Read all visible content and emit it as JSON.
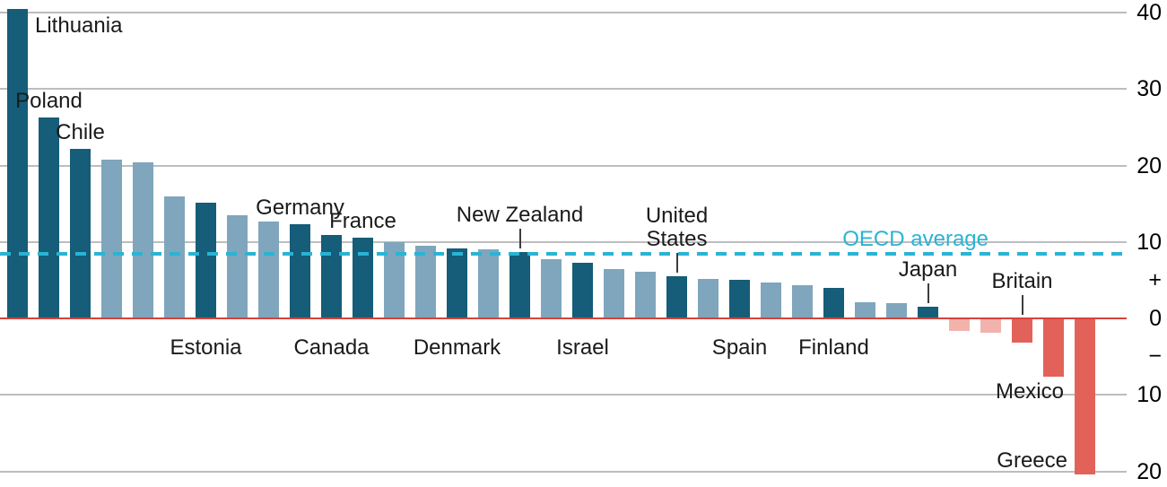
{
  "chart_data": {
    "type": "bar",
    "bars": [
      {
        "country": "Lithuania",
        "value": 40.5,
        "shade": "dark",
        "label_position": "top-right"
      },
      {
        "country": "Poland",
        "value": 26.3,
        "shade": "dark",
        "label_position": "above"
      },
      {
        "country": "Chile",
        "value": 22.2,
        "shade": "dark",
        "label_position": "above"
      },
      {
        "country": "",
        "value": 20.8,
        "shade": "light"
      },
      {
        "country": "",
        "value": 20.4,
        "shade": "light"
      },
      {
        "country": "",
        "value": 16.0,
        "shade": "light"
      },
      {
        "country": "Estonia",
        "value": 15.1,
        "shade": "dark",
        "label_position": "below"
      },
      {
        "country": "",
        "value": 13.5,
        "shade": "light"
      },
      {
        "country": "",
        "value": 12.7,
        "shade": "light"
      },
      {
        "country": "Germany",
        "value": 12.3,
        "shade": "dark",
        "label_position": "above"
      },
      {
        "country": "Canada",
        "value": 10.9,
        "shade": "dark",
        "label_position": "below"
      },
      {
        "country": "France",
        "value": 10.6,
        "shade": "dark",
        "label_position": "above"
      },
      {
        "country": "",
        "value": 10.0,
        "shade": "light"
      },
      {
        "country": "",
        "value": 9.5,
        "shade": "light"
      },
      {
        "country": "Denmark",
        "value": 9.1,
        "shade": "dark",
        "label_position": "below"
      },
      {
        "country": "",
        "value": 9.0,
        "shade": "light"
      },
      {
        "country": "New Zealand",
        "value": 8.7,
        "shade": "dark",
        "label_position": "above",
        "leader": true
      },
      {
        "country": "",
        "value": 7.7,
        "shade": "light"
      },
      {
        "country": "Israel",
        "value": 7.3,
        "shade": "dark",
        "label_position": "below"
      },
      {
        "country": "",
        "value": 6.5,
        "shade": "light"
      },
      {
        "country": "",
        "value": 6.1,
        "shade": "light"
      },
      {
        "country": "United\nStates",
        "value": 5.5,
        "shade": "dark",
        "label_position": "above",
        "leader": true
      },
      {
        "country": "",
        "value": 5.2,
        "shade": "light"
      },
      {
        "country": "Spain",
        "value": 5.0,
        "shade": "dark",
        "label_position": "below"
      },
      {
        "country": "",
        "value": 4.7,
        "shade": "light"
      },
      {
        "country": "",
        "value": 4.3,
        "shade": "light"
      },
      {
        "country": "Finland",
        "value": 4.0,
        "shade": "dark",
        "label_position": "below"
      },
      {
        "country": "",
        "value": 2.1,
        "shade": "light"
      },
      {
        "country": "",
        "value": 2.0,
        "shade": "light"
      },
      {
        "country": "Japan",
        "value": 1.5,
        "shade": "dark",
        "label_position": "above",
        "leader": true
      },
      {
        "country": "",
        "value": -1.5,
        "shade": "pink"
      },
      {
        "country": "",
        "value": -1.8,
        "shade": "pink"
      },
      {
        "country": "Britain",
        "value": -3.0,
        "shade": "red",
        "label_position": "above",
        "leader": true
      },
      {
        "country": "Mexico",
        "value": -7.5,
        "shade": "red",
        "label_position": "below-end"
      },
      {
        "country": "Greece",
        "value": -20.3,
        "shade": "red",
        "label_position": "left-of-end"
      }
    ],
    "reference_line": {
      "label": "OECD average",
      "value": 8.5,
      "style": "dashed"
    },
    "axis": {
      "side": "right",
      "ylim": [
        -20.5,
        40.5
      ],
      "gridlines": [
        40,
        30,
        20,
        10,
        -10,
        -20
      ],
      "zero_value": 0,
      "ticks": [
        {
          "text": "40",
          "value": 40
        },
        {
          "text": "30",
          "value": 30
        },
        {
          "text": "20",
          "value": 20
        },
        {
          "text": "10",
          "value": 10
        },
        {
          "text": "+",
          "value": 5.1
        },
        {
          "text": "0",
          "value": 0
        },
        {
          "text": "−",
          "value": -4.9
        },
        {
          "text": "10",
          "value": -10
        },
        {
          "text": "20",
          "value": -20
        }
      ]
    }
  },
  "colors": {
    "dark": "#155d78",
    "light": "#7fa6bc",
    "pink": "#f2b3ac",
    "red": "#e2625a",
    "zero_line": "#d6433c",
    "gridline": "#bdbdbd",
    "reference": "#2bb3d4",
    "label_text": "#1a1a1a"
  }
}
